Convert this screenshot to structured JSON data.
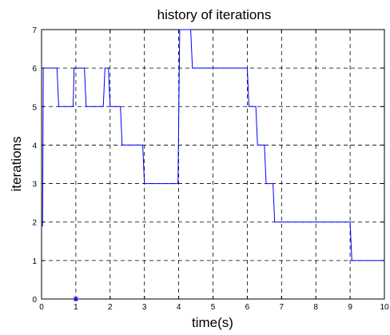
{
  "chart_data": {
    "type": "line",
    "title": "history of iterations",
    "xlabel": "time(s)",
    "ylabel": "iterations",
    "xlim": [
      0,
      10
    ],
    "ylim": [
      0,
      7
    ],
    "xticks": [
      "0",
      "1",
      "2",
      "3",
      "4",
      "5",
      "6",
      "7",
      "8",
      "9",
      "10"
    ],
    "yticks": [
      "0",
      "1",
      "2",
      "3",
      "4",
      "5",
      "6",
      "7"
    ],
    "grid": true,
    "series": [
      {
        "color": "#0000ff",
        "x": [
          0,
          0.03,
          0.05,
          0.45,
          0.5,
          0.92,
          0.95,
          1.25,
          1.3,
          1.8,
          1.85,
          1.95,
          2.0,
          2.2,
          2.25,
          2.3,
          2.35,
          2.95,
          3.0,
          3.98,
          4.03,
          4.1,
          4.35,
          4.4,
          6.0,
          6.05,
          6.25,
          6.3,
          6.5,
          6.55,
          6.75,
          6.8,
          9.0,
          9.05,
          10.0
        ],
        "y": [
          1.9,
          1.9,
          6,
          6,
          5,
          5,
          6,
          6,
          5,
          5,
          6,
          6,
          5,
          5,
          5,
          5,
          4,
          4,
          3,
          3,
          7,
          7,
          7,
          6,
          6,
          5,
          5,
          4,
          4,
          3,
          3,
          2,
          2,
          1,
          1
        ]
      }
    ],
    "marker": {
      "x": 1,
      "y": 0,
      "color": "#0000ff"
    }
  }
}
